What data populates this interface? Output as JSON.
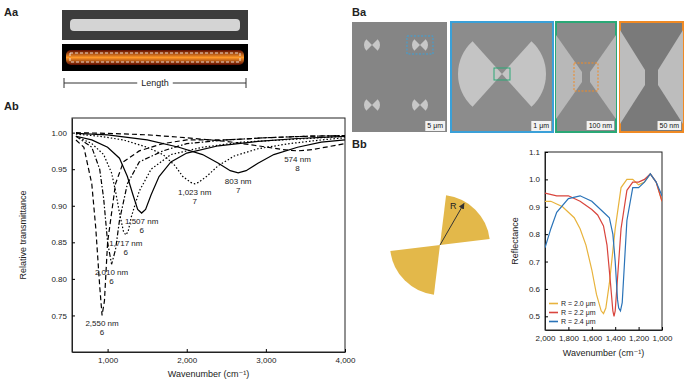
{
  "figure": {
    "panel_labels": [
      "Aa",
      "Ab",
      "Ba",
      "Bb"
    ],
    "aa": {
      "dimension_label": "Length"
    },
    "ba": {
      "scale_bars": [
        "5 μm",
        "1 μm",
        "100 nm",
        "50 nm"
      ]
    },
    "bb": {
      "radius_label": "R"
    }
  },
  "chart_data": [
    {
      "type": "line",
      "x_label": "Wavenumber (cm⁻¹)",
      "y_label": "Relative transmittance",
      "xlim": [
        550,
        4000
      ],
      "xticks": [
        {
          "value": 1000,
          "label": "1,000"
        },
        {
          "value": 2000,
          "label": "2,000"
        },
        {
          "value": 3000,
          "label": "3,000"
        },
        {
          "value": 4000,
          "label": "4,000"
        }
      ],
      "ylim": [
        0.7,
        1.02
      ],
      "yticks": [
        0.75,
        {
          "value": 0.8,
          "label": "0.80"
        },
        0.85,
        {
          "value": 0.9,
          "label": "0.90"
        },
        0.95,
        {
          "value": 1,
          "label": "1.00"
        }
      ],
      "grid": false,
      "series": [
        {
          "name": "2,550 nm",
          "order": 6,
          "color": "#000000",
          "line_style": "dashed",
          "x": [
            600,
            700,
            800,
            850,
            900,
            930,
            960,
            1000,
            1100,
            1200,
            1400,
            1700,
            2000,
            2500,
            3000,
            3500,
            4000
          ],
          "values": [
            0.99,
            0.98,
            0.93,
            0.87,
            0.79,
            0.75,
            0.77,
            0.85,
            0.93,
            0.96,
            0.975,
            0.985,
            0.99,
            0.99,
            0.993,
            0.995,
            0.996
          ]
        },
        {
          "name": "2,010 nm",
          "order": 6,
          "color": "#000000",
          "line_style": "dashdot",
          "x": [
            600,
            800,
            900,
            950,
            1000,
            1050,
            1100,
            1150,
            1250,
            1400,
            1700,
            2000,
            2500,
            3000,
            3500,
            4000
          ],
          "values": [
            0.995,
            0.98,
            0.95,
            0.91,
            0.85,
            0.82,
            0.84,
            0.88,
            0.93,
            0.96,
            0.975,
            0.985,
            0.99,
            0.993,
            0.995,
            0.996
          ]
        },
        {
          "name": "1,717 nm",
          "order": 6,
          "color": "#000000",
          "line_style": "dotted",
          "x": [
            600,
            800,
            950,
            1050,
            1100,
            1150,
            1200,
            1230,
            1260,
            1300,
            1400,
            1550,
            1800,
            2200,
            2700,
            3200,
            3700,
            4000
          ],
          "values": [
            0.995,
            0.985,
            0.97,
            0.945,
            0.92,
            0.89,
            0.865,
            0.86,
            0.865,
            0.885,
            0.92,
            0.95,
            0.97,
            0.98,
            0.987,
            0.99,
            0.993,
            0.995
          ]
        },
        {
          "name": "1,507 nm",
          "order": 6,
          "color": "#000000",
          "line_style": "solid",
          "x": [
            600,
            800,
            1000,
            1150,
            1250,
            1320,
            1380,
            1430,
            1480,
            1550,
            1650,
            1800,
            2000,
            2400,
            2900,
            3400,
            4000
          ],
          "values": [
            0.995,
            0.99,
            0.98,
            0.965,
            0.94,
            0.915,
            0.895,
            0.89,
            0.895,
            0.915,
            0.94,
            0.96,
            0.972,
            0.982,
            0.988,
            0.992,
            0.995
          ]
        },
        {
          "name": "1,023 nm",
          "order": 7,
          "color": "#000000",
          "line_style": "dotted",
          "x": [
            600,
            900,
            1200,
            1500,
            1700,
            1850,
            1950,
            2050,
            2100,
            2150,
            2250,
            2400,
            2600,
            2900,
            3300,
            3700,
            4000
          ],
          "values": [
            0.998,
            0.995,
            0.99,
            0.98,
            0.97,
            0.955,
            0.94,
            0.932,
            0.93,
            0.932,
            0.94,
            0.955,
            0.968,
            0.978,
            0.985,
            0.99,
            0.993
          ]
        },
        {
          "name": "803 nm",
          "order": 7,
          "color": "#000000",
          "line_style": "solid",
          "x": [
            600,
            1000,
            1500,
            1900,
            2200,
            2400,
            2550,
            2650,
            2750,
            2900,
            3100,
            3400,
            3700,
            4000
          ],
          "values": [
            0.999,
            0.997,
            0.99,
            0.98,
            0.97,
            0.958,
            0.948,
            0.945,
            0.948,
            0.958,
            0.97,
            0.98,
            0.987,
            0.99
          ]
        },
        {
          "name": "574 nm",
          "order": 8,
          "color": "#000000",
          "line_style": "dashed",
          "x": [
            600,
            1000,
            1500,
            2000,
            2500,
            2900,
            3200,
            3400,
            3600,
            3800,
            4000
          ],
          "values": [
            1.0,
            0.999,
            0.997,
            0.993,
            0.988,
            0.982,
            0.977,
            0.975,
            0.977,
            0.981,
            0.985
          ]
        }
      ]
    },
    {
      "type": "line",
      "x_label": "Wavenumber (cm⁻¹)",
      "y_label": "Reflectance",
      "xlim": [
        2000,
        1000
      ],
      "xticks": [
        {
          "value": 2000,
          "label": "2,000"
        },
        {
          "value": 1800,
          "label": "1,800"
        },
        {
          "value": 1600,
          "label": "1,600"
        },
        {
          "value": 1400,
          "label": "1,400"
        },
        {
          "value": 1200,
          "label": "1,200"
        },
        {
          "value": 1000,
          "label": "1,000"
        }
      ],
      "ylim": [
        0.45,
        1.1
      ],
      "yticks": [
        0.5,
        0.6,
        0.7,
        0.8,
        0.9,
        {
          "value": 1,
          "label": "1.0"
        },
        1.1
      ],
      "grid": false,
      "legend": "lower left",
      "series": [
        {
          "name": "R = 2.0 μm",
          "color": "#e8b33c",
          "line_style": "solid",
          "x": [
            2000,
            1950,
            1900,
            1850,
            1800,
            1750,
            1700,
            1650,
            1600,
            1560,
            1520,
            1500,
            1480,
            1450,
            1400,
            1350,
            1300,
            1250,
            1200,
            1150,
            1100,
            1050,
            1000
          ],
          "values": [
            0.92,
            0.92,
            0.91,
            0.9,
            0.88,
            0.86,
            0.82,
            0.76,
            0.67,
            0.58,
            0.52,
            0.51,
            0.53,
            0.62,
            0.82,
            0.97,
            1.0,
            1.0,
            0.98,
            0.99,
            1.02,
            0.99,
            0.92
          ]
        },
        {
          "name": "R = 2.2 μm",
          "color": "#d9453d",
          "line_style": "solid",
          "x": [
            2000,
            1900,
            1800,
            1700,
            1600,
            1550,
            1500,
            1470,
            1440,
            1420,
            1410,
            1400,
            1380,
            1350,
            1300,
            1250,
            1200,
            1150,
            1100,
            1050,
            1000
          ],
          "values": [
            0.95,
            0.94,
            0.94,
            0.92,
            0.89,
            0.87,
            0.83,
            0.76,
            0.62,
            0.52,
            0.5,
            0.52,
            0.64,
            0.82,
            0.96,
            0.99,
            0.99,
            1.0,
            1.02,
            0.99,
            0.92
          ]
        },
        {
          "name": "R = 2.4 μm",
          "color": "#2a73b8",
          "line_style": "solid",
          "x": [
            2000,
            1950,
            1900,
            1800,
            1700,
            1600,
            1500,
            1450,
            1420,
            1400,
            1380,
            1370,
            1355,
            1340,
            1320,
            1300,
            1250,
            1200,
            1150,
            1100,
            1050,
            1000
          ],
          "values": [
            0.75,
            0.82,
            0.88,
            0.93,
            0.94,
            0.92,
            0.88,
            0.86,
            0.8,
            0.7,
            0.56,
            0.53,
            0.52,
            0.55,
            0.7,
            0.85,
            0.97,
            0.97,
            0.99,
            1.02,
            0.99,
            0.94
          ]
        }
      ]
    }
  ]
}
